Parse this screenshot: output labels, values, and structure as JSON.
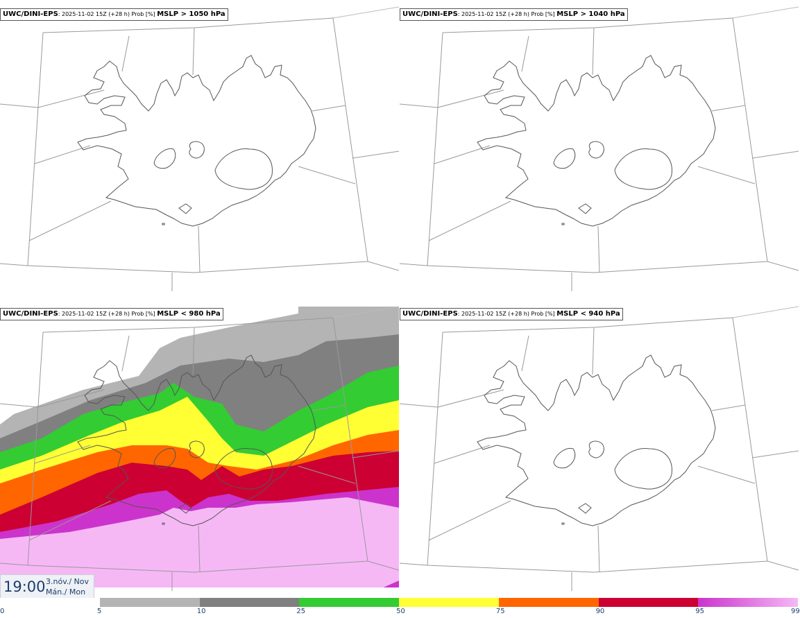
{
  "panels": [
    {
      "model": "UWC/DINI-EPS",
      "meta": ": 2025-11-02 15Z (+28 h) Prob [%] ",
      "threshold": "MSLP > 1050 hPa"
    },
    {
      "model": "UWC/DINI-EPS",
      "meta": ": 2025-11-02 15Z (+28 h) Prob [%] ",
      "threshold": "MSLP > 1040 hPa"
    },
    {
      "model": "UWC/DINI-EPS",
      "meta": ": 2025-11-02 15Z (+28 h) Prob [%] ",
      "threshold": "MSLP < 980 hPa"
    },
    {
      "model": "UWC/DINI-EPS",
      "meta": ": 2025-11-02 15Z (+28 h) Prob [%] ",
      "threshold": "MSLP < 940 hPa"
    }
  ],
  "valid_time": {
    "hour": "19:00",
    "date_line1": "3.nóv./ Nov",
    "date_line2": "Mán./ Mon"
  },
  "colorbar": {
    "labels": [
      "0",
      "5",
      "10",
      "25",
      "50",
      "75",
      "90",
      "95",
      "99"
    ],
    "colors": [
      "#ffffff",
      "#b4b4b4",
      "#808080",
      "#33cc33",
      "#ffff33",
      "#ff6600",
      "#cc0033",
      "#cc33cc",
      "#f5b8f5"
    ]
  },
  "map_layers": {
    "coastline": "#555555",
    "grid": "#999999",
    "probability_colors": {
      "p5": "#b4b4b4",
      "p10": "#808080",
      "p25": "#33cc33",
      "p50": "#ffff33",
      "p75": "#ff6600",
      "p90": "#cc0033",
      "p95": "#cc33cc",
      "p99": "#f5b8f5"
    }
  }
}
